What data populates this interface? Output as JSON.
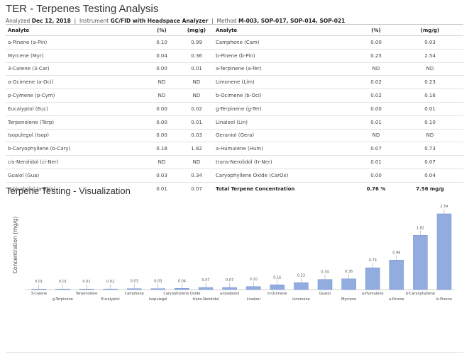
{
  "header": {
    "title": "TER - Terpenes Testing Analysis",
    "analyzed_label": "Analyzed",
    "analyzed_date": "Dec 12, 2018",
    "instrument_label": "Instrument",
    "instrument": "GC/FID with Headspace Analyzer",
    "method_label": "Method",
    "method": "M-003, SOP-017, SOP-014, SOP-021"
  },
  "table": {
    "headers": [
      "Analyte",
      "(%)",
      "(mg/g)",
      "Analyte",
      "(%)",
      "(mg/g)"
    ],
    "rows": [
      [
        "a-Pinene (a-Pin)",
        "0.10",
        "0.99",
        "Camphene (Cam)",
        "0.00",
        "0.03"
      ],
      [
        "Myrcene (Myr)",
        "0.04",
        "0.36",
        "b-Pinene (b-Pin)",
        "0.25",
        "2.54"
      ],
      [
        "3-Carene (3-Car)",
        "0.00",
        "0.01",
        "a-Terpinene (a-Ter)",
        "ND",
        "ND"
      ],
      [
        "a-Ocimene (a-Oci)",
        "ND",
        "ND",
        "Limonene (Lim)",
        "0.02",
        "0.23"
      ],
      [
        "p-Cymene (p-Cym)",
        "ND",
        "ND",
        "b-Ocimene (b-Oci)",
        "0.02",
        "0.16"
      ],
      [
        "Eucalyptol (Euc)",
        "0.00",
        "0.02",
        "g-Terpinene (g-Ter)",
        "0.00",
        "0.01"
      ],
      [
        "Terpenolene (Terp)",
        "0.00",
        "0.01",
        "Linalool (Lin)",
        "0.01",
        "0.10"
      ],
      [
        "Isopulegol (Isop)",
        "0.00",
        "0.03",
        "Geraniol (Gera)",
        "ND",
        "ND"
      ],
      [
        "b-Caryophyllene (b-Cary)",
        "0.18",
        "1.82",
        "a-Humulene (Hum)",
        "0.07",
        "0.73"
      ],
      [
        "cis-Nerolidol (ci-Ner)",
        "ND",
        "ND",
        "trans-Nerolidol (tr-Ner)",
        "0.01",
        "0.07"
      ],
      [
        "Guaiol (Gua)",
        "0.03",
        "0.34",
        "Caryophyllene Oxide (CarOx)",
        "0.00",
        "0.04"
      ]
    ],
    "last_row": {
      "analyte": "a-bisabolol (a-Bbis)",
      "pct": "0.01",
      "mg": "0.07",
      "total_label": "Total Terpene Concentration",
      "total_pct": "0.76 %",
      "total_mg": "7.56 mg/g"
    }
  },
  "viz": {
    "title": "Terpene Testing - Visualization"
  },
  "chart_data": {
    "type": "bar",
    "title": "",
    "ylabel": "Concentration (mg/g)",
    "xlabel": "",
    "categories": [
      "3-Carene",
      "g-Terpinene",
      "Terpenolene",
      "Eucalyptol",
      "Camphene",
      "Isopulegol",
      "Caryophyllene Oxide",
      "trans-Nerolidol",
      "a-bisabolol",
      "Linalool",
      "b-Ocimene",
      "Limonene",
      "Guaiol",
      "Myrcene",
      "a-Humulene",
      "a-Pinene",
      "b-Caryophyllene",
      "b-Pinene"
    ],
    "values": [
      0.01,
      0.01,
      0.01,
      0.02,
      0.03,
      0.03,
      0.04,
      0.07,
      0.07,
      0.1,
      0.16,
      0.23,
      0.34,
      0.36,
      0.73,
      0.99,
      1.82,
      2.54
    ],
    "value_labels": [
      "0.01",
      "0.01",
      "0.01",
      "0.02",
      "0.03",
      "0.03",
      "0.04",
      "0.07",
      "0.07",
      "0.10",
      "0.16",
      "0.23",
      "0.34",
      "0.36",
      "0.73",
      "0.99",
      "1.82",
      "2.54"
    ],
    "ylim": [
      0,
      2.54
    ],
    "grid": false,
    "bar_color": "#92acdf",
    "bar_edge": "#6f8fd0"
  }
}
